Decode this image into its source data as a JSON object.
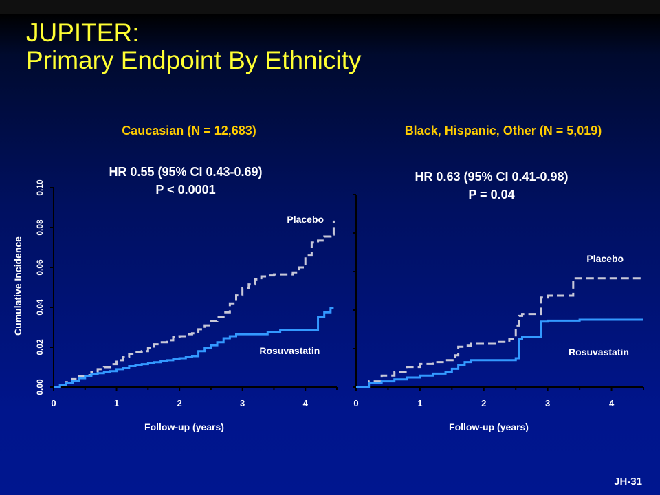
{
  "slide": {
    "title_line1": "JUPITER:",
    "title_line2": "Primary Endpoint By Ethnicity",
    "slide_id": "JH-31"
  },
  "colors": {
    "title": "#ffff33",
    "panel_title": "#ffcc00",
    "placebo": "#c8c8d8",
    "rosuvastatin": "#3399ff",
    "text": "#ffffff"
  },
  "chart_data": [
    {
      "type": "line",
      "title": "Caucasian (N = 12,683)",
      "annotation": [
        "HR 0.55 (95% CI 0.43-0.69)",
        "P < 0.0001"
      ],
      "xlabel": "Follow-up (years)",
      "ylabel": "Cumulative Incidence",
      "xlim": [
        0,
        4.5
      ],
      "ylim": [
        0,
        0.1
      ],
      "xticks": [
        "0",
        "1",
        "2",
        "3",
        "4"
      ],
      "yticks": [
        "0.00",
        "0.02",
        "0.04",
        "0.06",
        "0.08",
        "0.10"
      ],
      "show_yticks": true,
      "grid": false,
      "series": [
        {
          "name": "Placebo",
          "style": "dashed",
          "x": [
            0,
            0.1,
            0.2,
            0.3,
            0.4,
            0.5,
            0.6,
            0.7,
            0.8,
            0.9,
            1.0,
            1.1,
            1.2,
            1.3,
            1.4,
            1.5,
            1.6,
            1.7,
            1.8,
            1.9,
            2.0,
            2.1,
            2.2,
            2.3,
            2.4,
            2.5,
            2.6,
            2.7,
            2.8,
            2.9,
            3.0,
            3.1,
            3.2,
            3.3,
            3.4,
            3.5,
            3.6,
            3.7,
            3.8,
            3.9,
            4.0,
            4.1,
            4.2,
            4.3,
            4.4,
            4.45
          ],
          "y": [
            0.0,
            0.001,
            0.0025,
            0.004,
            0.0055,
            0.006,
            0.0075,
            0.009,
            0.01,
            0.0115,
            0.0135,
            0.015,
            0.0165,
            0.0175,
            0.018,
            0.0195,
            0.0215,
            0.0225,
            0.0235,
            0.025,
            0.0255,
            0.0265,
            0.027,
            0.029,
            0.031,
            0.033,
            0.035,
            0.0375,
            0.042,
            0.046,
            0.0495,
            0.0515,
            0.054,
            0.0555,
            0.056,
            0.0565,
            0.0565,
            0.0565,
            0.0575,
            0.06,
            0.066,
            0.0725,
            0.0735,
            0.0755,
            0.0765,
            0.0835
          ],
          "label_x": 4.0,
          "label_y": 0.0825
        },
        {
          "name": "Rosuvastatin",
          "style": "solid",
          "x": [
            0,
            0.1,
            0.2,
            0.3,
            0.4,
            0.5,
            0.6,
            0.7,
            0.8,
            0.9,
            1.0,
            1.1,
            1.2,
            1.3,
            1.4,
            1.5,
            1.6,
            1.7,
            1.8,
            1.9,
            2.0,
            2.1,
            2.2,
            2.3,
            2.4,
            2.5,
            2.6,
            2.7,
            2.8,
            2.9,
            3.0,
            3.2,
            3.4,
            3.6,
            3.8,
            4.0,
            4.2,
            4.3,
            4.4,
            4.45
          ],
          "y": [
            0.0,
            0.001,
            0.002,
            0.003,
            0.0045,
            0.0055,
            0.0065,
            0.007,
            0.0075,
            0.008,
            0.009,
            0.0095,
            0.0105,
            0.011,
            0.0115,
            0.012,
            0.0125,
            0.013,
            0.0135,
            0.014,
            0.0145,
            0.015,
            0.0155,
            0.018,
            0.0195,
            0.021,
            0.0225,
            0.0245,
            0.0255,
            0.0265,
            0.0265,
            0.0265,
            0.0275,
            0.0285,
            0.0285,
            0.0285,
            0.035,
            0.0375,
            0.0395,
            0.0395
          ],
          "label_x": 3.75,
          "label_y": 0.0165
        }
      ]
    },
    {
      "type": "line",
      "title": "Black, Hispanic, Other (N = 5,019)",
      "annotation": [
        "HR 0.63 (95% CI 0.41-0.98)",
        "P = 0.04"
      ],
      "xlabel": "Follow-up (years)",
      "ylabel": "",
      "xlim": [
        0,
        4.5
      ],
      "ylim": [
        0,
        0.1
      ],
      "xticks": [
        "0",
        "1",
        "2",
        "3",
        "4"
      ],
      "show_yticks": false,
      "grid": false,
      "series": [
        {
          "name": "Placebo",
          "style": "dashed",
          "x": [
            0,
            0.2,
            0.4,
            0.6,
            0.8,
            1.0,
            1.2,
            1.4,
            1.55,
            1.6,
            1.7,
            1.8,
            2.0,
            2.2,
            2.4,
            2.5,
            2.55,
            2.6,
            2.8,
            2.9,
            3.0,
            3.3,
            3.4,
            3.6,
            3.8,
            4.0,
            4.2,
            4.5
          ],
          "y": [
            0.0,
            0.003,
            0.006,
            0.008,
            0.0105,
            0.012,
            0.013,
            0.014,
            0.0165,
            0.021,
            0.0215,
            0.0225,
            0.0225,
            0.0235,
            0.025,
            0.032,
            0.037,
            0.038,
            0.038,
            0.0465,
            0.0475,
            0.0475,
            0.0565,
            0.0565,
            0.0565,
            0.0565,
            0.0565,
            0.0565
          ],
          "label_x": 3.9,
          "label_y": 0.065
        },
        {
          "name": "Rosuvastatin",
          "style": "solid",
          "x": [
            0,
            0.2,
            0.4,
            0.6,
            0.8,
            1.0,
            1.2,
            1.4,
            1.5,
            1.6,
            1.7,
            1.8,
            2.0,
            2.2,
            2.4,
            2.5,
            2.55,
            2.6,
            2.9,
            3.0,
            3.5,
            4.0,
            4.5
          ],
          "y": [
            0.0,
            0.002,
            0.003,
            0.004,
            0.005,
            0.006,
            0.007,
            0.008,
            0.0095,
            0.0115,
            0.013,
            0.014,
            0.014,
            0.014,
            0.014,
            0.015,
            0.025,
            0.026,
            0.034,
            0.0345,
            0.035,
            0.035,
            0.035
          ],
          "label_x": 3.8,
          "label_y": 0.0165
        }
      ]
    }
  ]
}
